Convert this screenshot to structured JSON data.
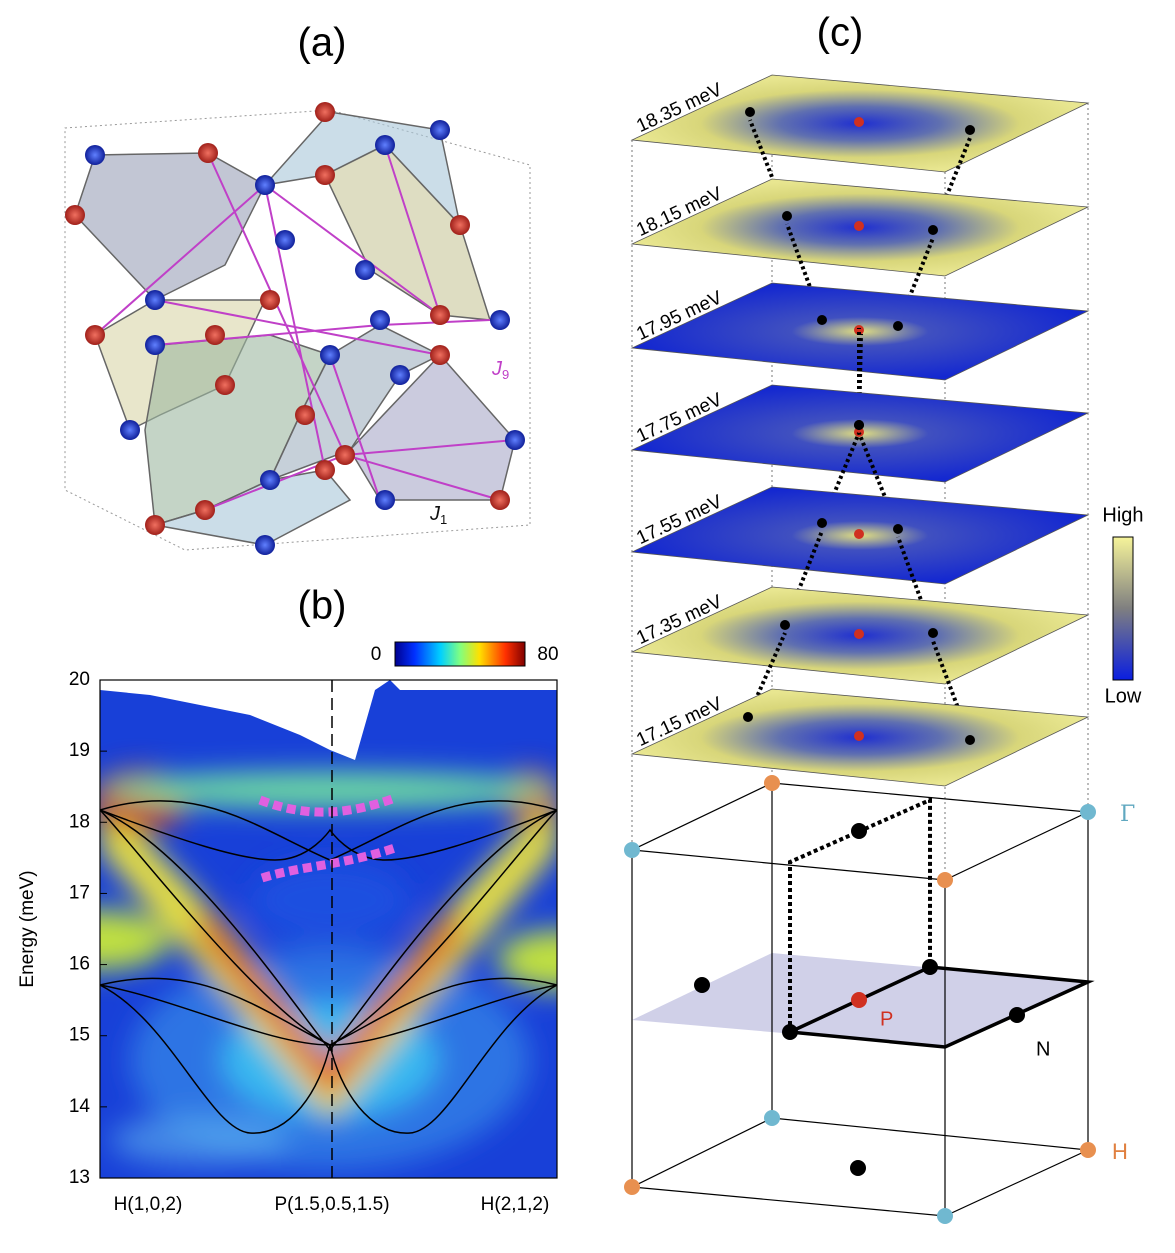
{
  "panel_a": {
    "label": "(a)",
    "j9": {
      "letter": "J",
      "sub": "9"
    },
    "j1": {
      "letter": "J",
      "sub": "1"
    }
  },
  "panel_b": {
    "label": "(b)",
    "colorbar": {
      "min": 0,
      "max": 80
    },
    "ylabel": "Energy (meV)",
    "ylim": [
      13,
      20
    ],
    "yticks": [
      13,
      14,
      15,
      16,
      17,
      18,
      19,
      20
    ],
    "xticks": [
      "H(1,0,2)",
      "P(1.5,0.5,1.5)",
      "H(2,1,2)"
    ]
  },
  "panel_c": {
    "label": "(c)",
    "slices": [
      "18.35 meV",
      "18.15 meV",
      "17.95 meV",
      "17.75 meV",
      "17.55 meV",
      "17.35 meV",
      "17.15 meV"
    ],
    "colorbar": {
      "high": "High",
      "low": "Low"
    },
    "points": {
      "gamma": "Γ",
      "p": "P",
      "n": "N",
      "h": "H"
    }
  }
}
